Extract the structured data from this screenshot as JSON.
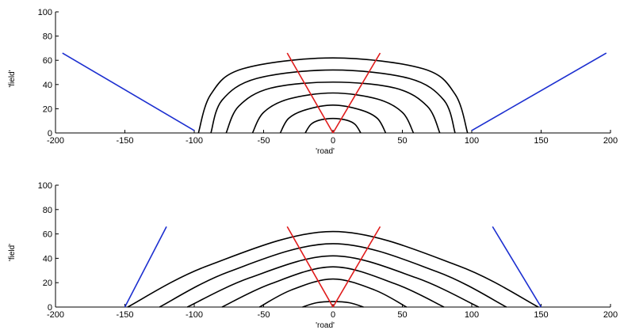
{
  "chart_data": [
    {
      "type": "line",
      "xlabel": "'road'",
      "ylabel": "'field'",
      "xlim": [
        -200,
        200
      ],
      "ylim": [
        0,
        100
      ],
      "xticks": [
        -200,
        -150,
        -100,
        -50,
        0,
        50,
        100,
        150,
        200
      ],
      "yticks": [
        0,
        20,
        40,
        60,
        80,
        100
      ],
      "colors": {
        "contours": "#000000",
        "red_lines": "#e01b1b",
        "blue_lines": "#1c2fd0"
      },
      "contours": [
        {
          "x": [
            -20,
            -16,
            -10,
            0,
            10,
            16,
            20
          ],
          "y": [
            0,
            7,
            10.5,
            12,
            10.5,
            7,
            0
          ]
        },
        {
          "x": [
            -38,
            -32,
            -20,
            0,
            20,
            32,
            38
          ],
          "y": [
            0,
            12,
            19,
            23,
            19,
            12,
            0
          ]
        },
        {
          "x": [
            -58,
            -50,
            -32,
            0,
            32,
            50,
            58
          ],
          "y": [
            0,
            17,
            28,
            33,
            28,
            17,
            0
          ]
        },
        {
          "x": [
            -77,
            -68,
            -45,
            0,
            45,
            68,
            77
          ],
          "y": [
            0,
            22,
            37,
            42,
            37,
            22,
            0
          ]
        },
        {
          "x": [
            -88,
            -80,
            -55,
            0,
            55,
            80,
            88
          ],
          "y": [
            0,
            27,
            45,
            52,
            45,
            27,
            0
          ]
        },
        {
          "x": [
            -97,
            -88,
            -65,
            0,
            65,
            88,
            97
          ],
          "y": [
            0,
            32,
            53,
            62,
            53,
            32,
            0
          ]
        }
      ],
      "red_lines": [
        {
          "x": [
            -33,
            0
          ],
          "y": [
            66,
            0
          ]
        },
        {
          "x": [
            0,
            34
          ],
          "y": [
            0,
            66
          ]
        }
      ],
      "blue_lines": [
        {
          "x": [
            -195,
            -100
          ],
          "y": [
            66,
            2
          ]
        },
        {
          "x": [
            100,
            197
          ],
          "y": [
            2,
            66
          ]
        }
      ]
    },
    {
      "type": "line",
      "xlabel": "'road'",
      "ylabel": "'field'",
      "xlim": [
        -200,
        200
      ],
      "ylim": [
        0,
        100
      ],
      "xticks": [
        -200,
        -150,
        -100,
        -50,
        0,
        50,
        100,
        150,
        200
      ],
      "yticks": [
        0,
        20,
        40,
        60,
        80,
        100
      ],
      "colors": {
        "contours": "#000000",
        "red_lines": "#e01b1b",
        "blue_lines": "#1c2fd0"
      },
      "contours": [
        {
          "x": [
            -22,
            -12,
            0,
            12,
            22
          ],
          "y": [
            0,
            3.5,
            4.5,
            3.5,
            0
          ]
        },
        {
          "x": [
            -53,
            -30,
            0,
            30,
            53
          ],
          "y": [
            0,
            14,
            23,
            14,
            0
          ]
        },
        {
          "x": [
            -80,
            -45,
            0,
            45,
            80
          ],
          "y": [
            0,
            19,
            33,
            19,
            0
          ]
        },
        {
          "x": [
            -105,
            -60,
            0,
            60,
            105
          ],
          "y": [
            0,
            24,
            42,
            24,
            0
          ]
        },
        {
          "x": [
            -125,
            -75,
            0,
            75,
            125
          ],
          "y": [
            0,
            29,
            52,
            29,
            0
          ]
        },
        {
          "x": [
            -148,
            -90,
            0,
            90,
            148
          ],
          "y": [
            0,
            34,
            62,
            34,
            0
          ]
        }
      ],
      "red_lines": [
        {
          "x": [
            -33,
            0
          ],
          "y": [
            66,
            0
          ]
        },
        {
          "x": [
            0,
            34
          ],
          "y": [
            0,
            66
          ]
        }
      ],
      "blue_lines": [
        {
          "x": [
            -150,
            -120
          ],
          "y": [
            0,
            66
          ]
        },
        {
          "x": [
            115,
            150
          ],
          "y": [
            66,
            0
          ]
        }
      ]
    }
  ]
}
